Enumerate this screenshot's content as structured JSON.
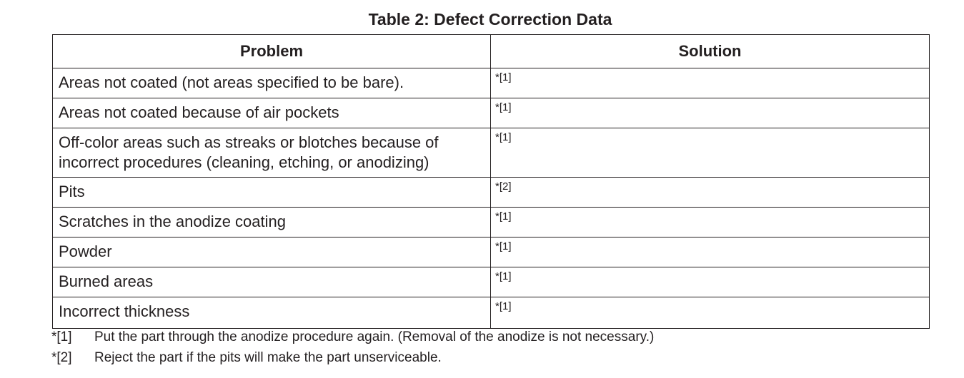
{
  "title": "Table 2:  Defect Correction Data",
  "columns": {
    "problem": "Problem",
    "solution": "Solution"
  },
  "rows": [
    {
      "problem": "Areas not coated (not areas specified to be bare).",
      "solution": "*[1]"
    },
    {
      "problem": "Areas not coated because of air pockets",
      "solution": "*[1]"
    },
    {
      "problem": "Off-color areas such as streaks or blotches because of incorrect procedures (cleaning, etching, or anodizing)",
      "solution": "*[1]"
    },
    {
      "problem": "Pits",
      "solution": "*[2]"
    },
    {
      "problem": "Scratches in the anodize coating",
      "solution": "*[1]"
    },
    {
      "problem": "Powder",
      "solution": "*[1]"
    },
    {
      "problem": "Burned areas",
      "solution": "*[1]"
    },
    {
      "problem": "Incorrect thickness",
      "solution": "*[1]"
    }
  ],
  "footnotes": [
    {
      "mark": "*[1]",
      "text": "Put the part through the anodize procedure again. (Removal of the anodize is not necessary.)"
    },
    {
      "mark": "*[2]",
      "text": "Reject the part if the pits will make the part unserviceable."
    }
  ]
}
